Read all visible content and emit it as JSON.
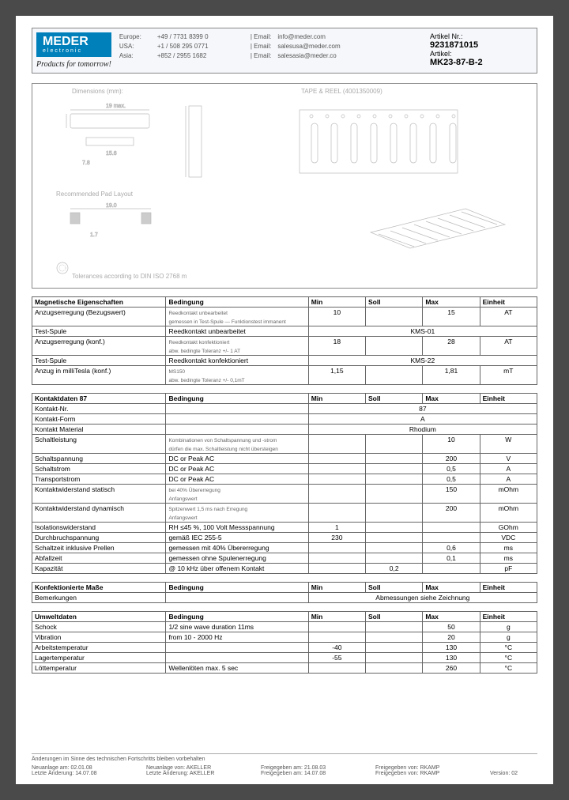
{
  "header": {
    "logo_main": "MEDER",
    "logo_sub": "electronic",
    "slogan": "Products for tomorrow!",
    "contacts": [
      {
        "region": "Europe:",
        "phone": "+49 / 7731 8399 0",
        "email_label": "| Email:",
        "email": "info@meder.com"
      },
      {
        "region": "USA:",
        "phone": "+1 / 508 295 0771",
        "email_label": "| Email:",
        "email": "salesusa@meder.com"
      },
      {
        "region": "Asia:",
        "phone": "+852 / 2955 1682",
        "email_label": "| Email:",
        "email": "salesasia@meder.co"
      }
    ],
    "article_nr_label": "Artikel Nr.:",
    "article_nr": "9231871015",
    "article_label": "Artikel:",
    "article": "MK23-87-B-2"
  },
  "diagram": {
    "dimensions_label": "Dimensions (mm):",
    "tape_reel_label": "TAPE & REEL (4001350009)",
    "pad_label": "Recommended Pad Layout",
    "tolerance_note": "Tolerances according to DIN ISO 2768 m"
  },
  "tables": [
    {
      "title": "Magnetische Eigenschaften",
      "cond_header": "Bedingung",
      "cols": [
        "Min",
        "Soll",
        "Max",
        "Einheit"
      ],
      "rows": [
        {
          "name": "Anzugserregung (Bezugswert)",
          "cond": "Reedkontakt unbearbeitet\ngemessen in Test-Spule — Funktionstest immanent",
          "min": "10",
          "soll": "",
          "max": "15",
          "unit": "AT"
        },
        {
          "name": "Test-Spule",
          "cond": "Reedkontakt unbearbeitet",
          "span": "KMS-01"
        },
        {
          "name": "Anzugserregung (konf.)",
          "cond": "Reedkontakt konfektioniert\nabw. bedingte Toleranz +/- 1 AT",
          "min": "18",
          "soll": "",
          "max": "28",
          "unit": "AT"
        },
        {
          "name": "Test-Spule",
          "cond": "Reedkontakt konfektioniert",
          "span": "KMS-22"
        },
        {
          "name": "Anzug in milliTesla (konf.)",
          "cond": "MS150\nabw. bedingte Toleranz +/- 0,1mT",
          "min": "1,15",
          "soll": "",
          "max": "1,81",
          "unit": "mT"
        }
      ]
    },
    {
      "title": "Kontaktdaten  87",
      "cond_header": "Bedingung",
      "cols": [
        "Min",
        "Soll",
        "Max",
        "Einheit"
      ],
      "rows": [
        {
          "name": "Kontakt-Nr.",
          "cond": "",
          "span": "87"
        },
        {
          "name": "Kontakt-Form",
          "cond": "",
          "span": "A"
        },
        {
          "name": "Kontakt Material",
          "cond": "",
          "span": "Rhodium"
        },
        {
          "name": "Schaltleistung",
          "cond": "Kombinationen von Schaltspannung und -strom\ndürfen die max. Schaltleistung nicht übersteigen",
          "min": "",
          "soll": "",
          "max": "10",
          "unit": "W"
        },
        {
          "name": "Schaltspannung",
          "cond": "DC or Peak AC",
          "min": "",
          "soll": "",
          "max": "200",
          "unit": "V"
        },
        {
          "name": "Schaltstrom",
          "cond": "DC or Peak AC",
          "min": "",
          "soll": "",
          "max": "0,5",
          "unit": "A"
        },
        {
          "name": "Transportstrom",
          "cond": "DC or Peak AC",
          "min": "",
          "soll": "",
          "max": "0,5",
          "unit": "A"
        },
        {
          "name": "Kontaktwiderstand statisch",
          "cond": "bei 40% Übererregung\nAnfangswert",
          "min": "",
          "soll": "",
          "max": "150",
          "unit": "mOhm"
        },
        {
          "name": "Kontaktwiderstand dynamisch",
          "cond": "Spitzenwert 1,5 ms nach Erregung\nAnfangswert",
          "min": "",
          "soll": "",
          "max": "200",
          "unit": "mOhm"
        },
        {
          "name": "Isolationswiderstand",
          "cond": "RH ≤45 %, 100 Volt Messspannung",
          "min": "1",
          "soll": "",
          "max": "",
          "unit": "GOhm"
        },
        {
          "name": "Durchbruchspannung",
          "cond": "gemäß  IEC 255-5",
          "min": "230",
          "soll": "",
          "max": "",
          "unit": "VDC"
        },
        {
          "name": "Schaltzeit inklusive Prellen",
          "cond": "gemessen mit 40% Übererregung",
          "min": "",
          "soll": "",
          "max": "0,6",
          "unit": "ms"
        },
        {
          "name": "Abfallzeit",
          "cond": "gemessen ohne Spulenerregung",
          "min": "",
          "soll": "",
          "max": "0,1",
          "unit": "ms"
        },
        {
          "name": "Kapazität",
          "cond": "@ 10 kHz über offenem Kontakt",
          "min": "",
          "soll": "0,2",
          "max": "",
          "unit": "pF"
        }
      ]
    },
    {
      "title": "Konfektionierte Maße",
      "cond_header": "Bedingung",
      "cols": [
        "Min",
        "Soll",
        "Max",
        "Einheit"
      ],
      "rows": [
        {
          "name": "Bemerkungen",
          "cond": "",
          "span": "Abmessungen siehe Zeichnung"
        }
      ]
    },
    {
      "title": "Umweltdaten",
      "cond_header": "Bedingung",
      "cols": [
        "Min",
        "Soll",
        "Max",
        "Einheit"
      ],
      "rows": [
        {
          "name": "Schock",
          "cond": "1/2 sine wave duration 11ms",
          "min": "",
          "soll": "",
          "max": "50",
          "unit": "g"
        },
        {
          "name": "Vibration",
          "cond": "from  10 - 2000 Hz",
          "min": "",
          "soll": "",
          "max": "20",
          "unit": "g"
        },
        {
          "name": "Arbeitstemperatur",
          "cond": "",
          "min": "-40",
          "soll": "",
          "max": "130",
          "unit": "°C"
        },
        {
          "name": "Lagertemperatur",
          "cond": "",
          "min": "-55",
          "soll": "",
          "max": "130",
          "unit": "°C"
        },
        {
          "name": "Löttemperatur",
          "cond": "Wellenlöten max. 5 sec",
          "min": "",
          "soll": "",
          "max": "260",
          "unit": "°C"
        }
      ]
    }
  ],
  "footer": {
    "changes_note": "Änderungen im Sinne des technischen Fortschritts bleiben vorbehalten",
    "neu_label": "Neuanlage am:",
    "neu_date": "02.01.08",
    "neu_by_label": "Neuanlage von:",
    "neu_by": "AKELLER",
    "frei_label": "Freigegeben am:",
    "frei_date": "21.08.03",
    "frei_by_label": "Freigegeben von:",
    "frei_by": "RKAMP",
    "letzte_label": "Letzte Änderung:",
    "letzte_date": "14.07.08",
    "letzte_by_label": "Letzte Änderung:",
    "letzte_by": "AKELLER",
    "frei2_label": "Freigegeben am:",
    "frei2_date": "14.07.08",
    "frei2_by_label": "Freigegeben von:",
    "frei2_by": "RKAMP",
    "version_label": "Version:",
    "version": "02"
  },
  "widths": {
    "title_col": "150px",
    "cond_col": "160px",
    "num_col": "60px"
  }
}
